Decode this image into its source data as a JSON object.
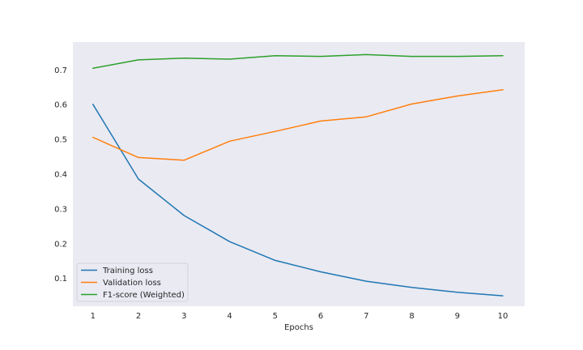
{
  "chart_data": {
    "type": "line",
    "title": "",
    "xlabel": "Epochs",
    "ylabel": "",
    "x": [
      1,
      2,
      3,
      4,
      5,
      6,
      7,
      8,
      9,
      10
    ],
    "xticks": [
      "1",
      "2",
      "3",
      "4",
      "5",
      "6",
      "7",
      "8",
      "9",
      "10"
    ],
    "yticks": [
      "0.1",
      "0.2",
      "0.3",
      "0.4",
      "0.5",
      "0.6",
      "0.7"
    ],
    "xlim": [
      0.56,
      10.48
    ],
    "ylim": [
      0.02,
      0.78
    ],
    "grid": false,
    "background": "#eaeaf2",
    "legend_position": "lower-left",
    "series": [
      {
        "name": "Training loss",
        "color": "#1f77b4",
        "values": [
          0.601,
          0.386,
          0.281,
          0.206,
          0.152,
          0.119,
          0.092,
          0.074,
          0.06,
          0.05
        ]
      },
      {
        "name": "Validation loss",
        "color": "#ff7f0e",
        "values": [
          0.506,
          0.448,
          0.44,
          0.495,
          0.523,
          0.553,
          0.565,
          0.602,
          0.625,
          0.643
        ]
      },
      {
        "name": "F1-score (Weighted)",
        "color": "#2ca02c",
        "values": [
          0.705,
          0.729,
          0.734,
          0.731,
          0.741,
          0.739,
          0.744,
          0.739,
          0.739,
          0.741
        ]
      }
    ]
  }
}
